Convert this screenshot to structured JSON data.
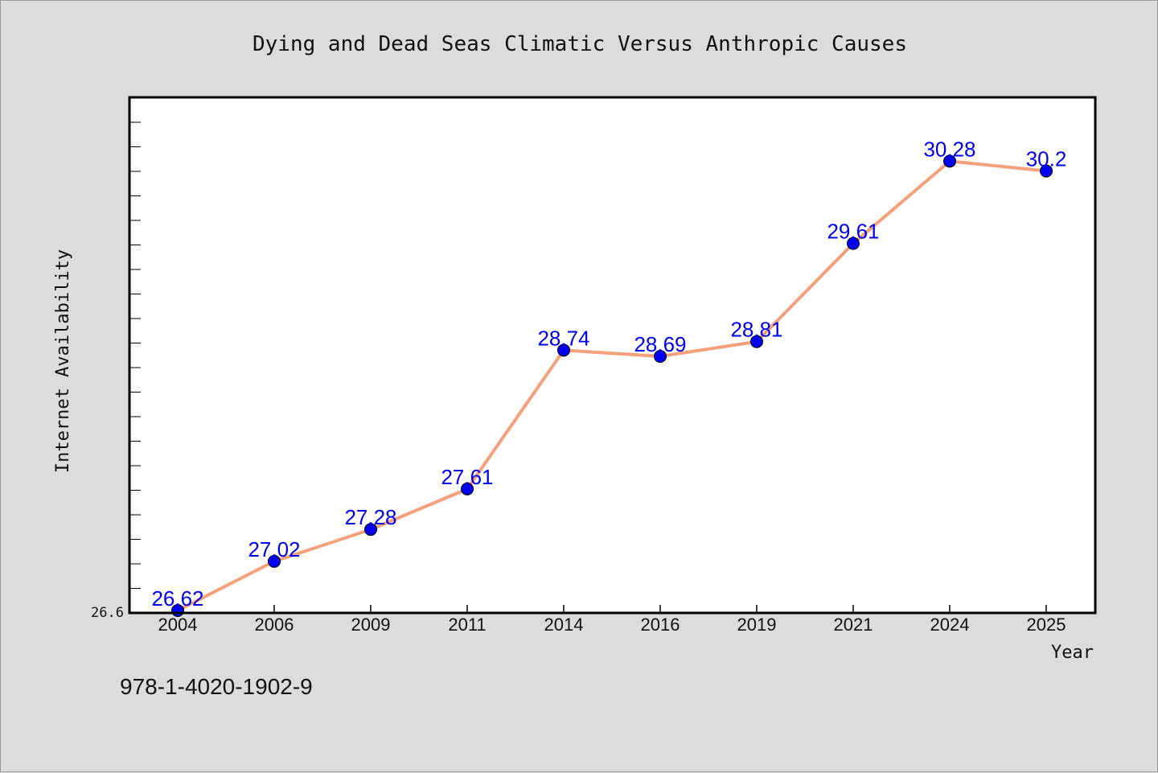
{
  "chart_data": {
    "type": "line",
    "title": "Dying and Dead Seas Climatic Versus Anthropic Causes",
    "xlabel": "Year",
    "ylabel": "Internet Availability",
    "categories": [
      "2004",
      "2006",
      "2009",
      "2011",
      "2014",
      "2016",
      "2019",
      "2021",
      "2024",
      "2025"
    ],
    "series": [
      {
        "values": [
          26.62,
          27.02,
          27.28,
          27.61,
          28.74,
          28.69,
          28.81,
          29.61,
          30.28,
          30.2
        ],
        "labels": [
          "26.62",
          "27.02",
          "27.28",
          "27.61",
          "28.74",
          "28.69",
          "28.81",
          "29.61",
          "30.28",
          "30.2"
        ],
        "line_color": "#f4a07a",
        "marker_color": "#0000ee"
      }
    ],
    "ylim": [
      26.6,
      30.8
    ],
    "yticks_labeled": [
      "26.6"
    ],
    "grid": false
  },
  "footer": {
    "isbn": "978-1-4020-1902-9"
  },
  "colors": {
    "background": "#dcdcdc",
    "plot_background": "#ffffff"
  }
}
